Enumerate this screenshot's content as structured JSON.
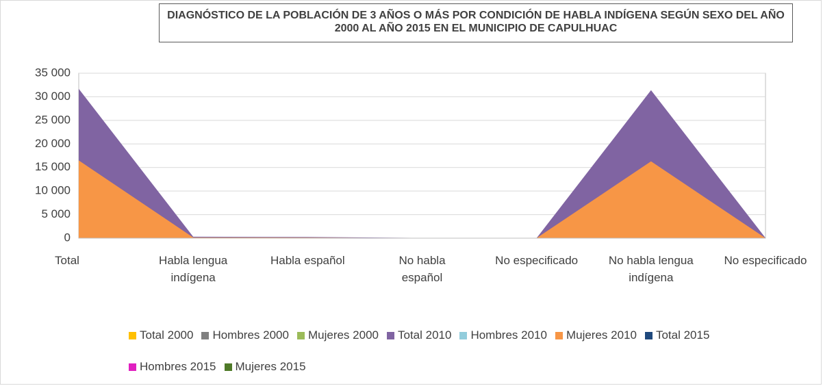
{
  "chart_data": {
    "type": "area",
    "title": "DIAGNÓSTICO DE LA POBLACIÓN DE 3 AÑOS O MÁS POR CONDICIÓN DE HABLA INDÍGENA SEGÚN SEXO DEL AÑO 2000 AL AÑO 2015 EN EL MUNICIPIO DE CAPULHUAC",
    "categories": [
      "Total",
      "Habla lengua indígena",
      "Habla español",
      "No habla español",
      "No especificado",
      "No habla lengua indígena",
      "No especificado"
    ],
    "series": [
      {
        "name": "Total 2000",
        "color": "#ffc000",
        "values": [
          0,
          0,
          0,
          0,
          0,
          0,
          0
        ]
      },
      {
        "name": "Hombres 2000",
        "color": "#808080",
        "values": [
          0,
          0,
          0,
          0,
          0,
          0,
          0
        ]
      },
      {
        "name": "Mujeres 2000",
        "color": "#9bbb59",
        "values": [
          0,
          0,
          0,
          0,
          0,
          0,
          0
        ]
      },
      {
        "name": "Total 2010",
        "color": "#8064a2",
        "values": [
          31700,
          300,
          250,
          50,
          20,
          31400,
          50
        ]
      },
      {
        "name": "Hombres 2010",
        "color": "#92cddc",
        "values": [
          0,
          0,
          0,
          0,
          0,
          0,
          0
        ]
      },
      {
        "name": "Mujeres 2010",
        "color": "#f79646",
        "values": [
          16500,
          150,
          130,
          20,
          10,
          16300,
          20
        ]
      },
      {
        "name": "Total 2015",
        "color": "#1f497d",
        "values": [
          0,
          0,
          0,
          0,
          0,
          0,
          0
        ]
      },
      {
        "name": "Hombres 2015",
        "color": "#e020c0",
        "values": [
          0,
          0,
          0,
          0,
          0,
          0,
          0
        ]
      },
      {
        "name": "Mujeres 2015",
        "color": "#4f7a28",
        "values": [
          0,
          0,
          0,
          0,
          0,
          0,
          0
        ]
      }
    ],
    "ylim": [
      0,
      35000
    ],
    "yticks": [
      0,
      {
        "value": 5000,
        "label": "5 000"
      },
      {
        "value": 10000,
        "label": "10 000"
      },
      {
        "value": 15000,
        "label": "15 000"
      },
      {
        "value": 20000,
        "label": "20 000"
      },
      {
        "value": 25000,
        "label": "25 000"
      },
      {
        "value": 30000,
        "label": "30 000"
      },
      {
        "value": 35000,
        "label": "35 000"
      }
    ],
    "grid": true,
    "legend": "bottom"
  }
}
